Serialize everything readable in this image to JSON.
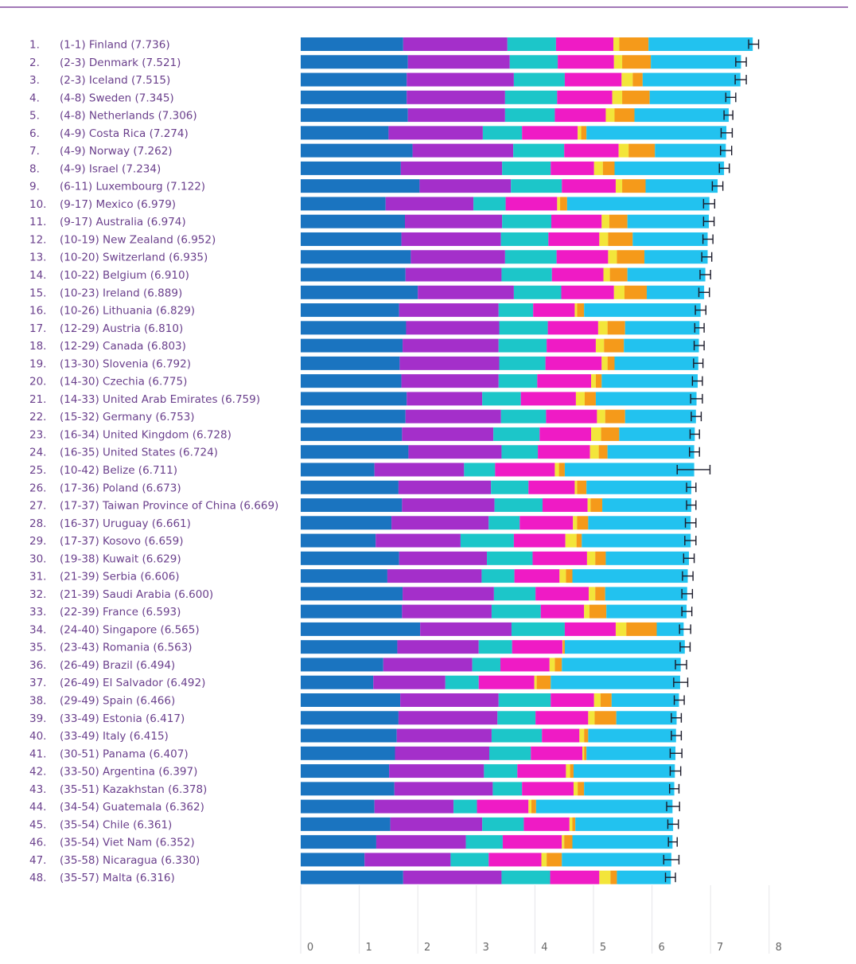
{
  "chart_data": {
    "type": "bar",
    "stacked": true,
    "orientation": "horizontal",
    "title": "",
    "xlabel": "",
    "ylabel": "",
    "xlim": [
      0,
      8
    ],
    "x_ticks": [
      "0",
      "1",
      "2",
      "3",
      "4",
      "5",
      "6",
      "7",
      "8"
    ],
    "grid": true,
    "legend": "none",
    "segment_colors": [
      "#1a74c0",
      "#a42fca",
      "#1cc6c9",
      "#ef1bc5",
      "#f3e53a",
      "#f59a1a",
      "#22c2ef"
    ],
    "rows": [
      {
        "label": "1.",
        "text": "(1-1) Finland (7.736)",
        "segments": [
          1.75,
          1.78,
          0.83,
          0.98,
          0.1,
          0.5,
          1.78
        ],
        "ci": [
          7.65,
          7.82
        ]
      },
      {
        "label": "2.",
        "text": "(2-3) Denmark (7.521)",
        "segments": [
          1.83,
          1.74,
          0.82,
          0.96,
          0.14,
          0.49,
          1.54
        ],
        "ci": [
          7.43,
          7.61
        ]
      },
      {
        "label": "3.",
        "text": "(2-3) Iceland (7.515)",
        "segments": [
          1.81,
          1.83,
          0.87,
          0.97,
          0.19,
          0.17,
          1.67
        ],
        "ci": [
          7.42,
          7.61
        ]
      },
      {
        "label": "4.",
        "text": "(4-8) Sweden (7.345)",
        "segments": [
          1.81,
          1.68,
          0.89,
          0.94,
          0.17,
          0.47,
          1.38
        ],
        "ci": [
          7.26,
          7.43
        ]
      },
      {
        "label": "5.",
        "text": "(4-8) Netherlands (7.306)",
        "segments": [
          1.83,
          1.66,
          0.85,
          0.87,
          0.15,
          0.34,
          1.61
        ],
        "ci": [
          7.23,
          7.38
        ]
      },
      {
        "label": "6.",
        "text": "(4-9) Costa Rica (7.274)",
        "segments": [
          1.5,
          1.61,
          0.67,
          0.95,
          0.06,
          0.09,
          2.39
        ],
        "ci": [
          7.18,
          7.37
        ]
      },
      {
        "label": "7.",
        "text": "(4-9) Norway (7.262)",
        "segments": [
          1.91,
          1.72,
          0.87,
          0.93,
          0.17,
          0.45,
          1.21
        ],
        "ci": [
          7.17,
          7.36
        ]
      },
      {
        "label": "8.",
        "text": "(4-9) Israel (7.234)",
        "segments": [
          1.71,
          1.73,
          0.83,
          0.74,
          0.15,
          0.2,
          1.87
        ],
        "ci": [
          7.15,
          7.32
        ]
      },
      {
        "label": "9.",
        "text": "(6-11) Luxembourg (7.122)",
        "segments": [
          2.03,
          1.56,
          0.87,
          0.92,
          0.11,
          0.4,
          1.23
        ],
        "ci": [
          7.03,
          7.21
        ]
      },
      {
        "label": "10.",
        "text": "(9-17) Mexico (6.979)",
        "segments": [
          1.45,
          1.5,
          0.55,
          0.88,
          0.05,
          0.12,
          2.43
        ],
        "ci": [
          6.88,
          7.07
        ]
      },
      {
        "label": "11.",
        "text": "(9-17) Australia (6.974)",
        "segments": [
          1.78,
          1.66,
          0.84,
          0.86,
          0.13,
          0.31,
          1.39
        ],
        "ci": [
          6.88,
          7.06
        ]
      },
      {
        "label": "12.",
        "text": "(10-19) New Zealand (6.952)",
        "segments": [
          1.72,
          1.7,
          0.81,
          0.87,
          0.15,
          0.42,
          1.28
        ],
        "ci": [
          6.87,
          7.04
        ]
      },
      {
        "label": "13.",
        "text": "(10-20) Switzerland (6.935)",
        "segments": [
          1.88,
          1.61,
          0.88,
          0.88,
          0.15,
          0.47,
          1.08
        ],
        "ci": [
          6.85,
          7.02
        ]
      },
      {
        "label": "14.",
        "text": "(10-22) Belgium (6.910)",
        "segments": [
          1.79,
          1.64,
          0.86,
          0.88,
          0.11,
          0.3,
          1.33
        ],
        "ci": [
          6.82,
          7.0
        ]
      },
      {
        "label": "15.",
        "text": "(10-23) Ireland (6.889)",
        "segments": [
          2.0,
          1.64,
          0.81,
          0.9,
          0.18,
          0.38,
          0.98
        ],
        "ci": [
          6.8,
          6.98
        ]
      },
      {
        "label": "16.",
        "text": "(10-26) Lithuania (6.829)",
        "segments": [
          1.68,
          1.7,
          0.59,
          0.71,
          0.04,
          0.12,
          1.99
        ],
        "ci": [
          6.74,
          6.92
        ]
      },
      {
        "label": "17.",
        "text": "(12-29) Austria (6.810)",
        "segments": [
          1.8,
          1.59,
          0.83,
          0.86,
          0.16,
          0.3,
          1.27
        ],
        "ci": [
          6.73,
          6.89
        ]
      },
      {
        "label": "18.",
        "text": "(12-29) Canada (6.803)",
        "segments": [
          1.74,
          1.64,
          0.82,
          0.84,
          0.14,
          0.34,
          1.28
        ],
        "ci": [
          6.72,
          6.89
        ]
      },
      {
        "label": "19.",
        "text": "(13-30) Slovenia (6.792)",
        "segments": [
          1.69,
          1.7,
          0.79,
          0.96,
          0.1,
          0.12,
          1.43
        ],
        "ci": [
          6.71,
          6.87
        ]
      },
      {
        "label": "20.",
        "text": "(14-30) Czechia (6.775)",
        "segments": [
          1.72,
          1.66,
          0.66,
          0.92,
          0.08,
          0.1,
          1.64
        ],
        "ci": [
          6.69,
          6.86
        ]
      },
      {
        "label": "21.",
        "text": "(14-33) United Arab Emirates (6.759)",
        "segments": [
          1.81,
          1.29,
          0.66,
          0.94,
          0.15,
          0.19,
          1.72
        ],
        "ci": [
          6.66,
          6.86
        ]
      },
      {
        "label": "22.",
        "text": "(15-32) Germany (6.753)",
        "segments": [
          1.79,
          1.63,
          0.77,
          0.87,
          0.14,
          0.34,
          1.21
        ],
        "ci": [
          6.67,
          6.84
        ]
      },
      {
        "label": "23.",
        "text": "(16-34) United Kingdom (6.728)",
        "segments": [
          1.73,
          1.56,
          0.79,
          0.88,
          0.17,
          0.31,
          1.29
        ],
        "ci": [
          6.65,
          6.81
        ]
      },
      {
        "label": "24.",
        "text": "(16-35) United States (6.724)",
        "segments": [
          1.84,
          1.59,
          0.62,
          0.89,
          0.15,
          0.15,
          1.48
        ],
        "ci": [
          6.64,
          6.81
        ]
      },
      {
        "label": "25.",
        "text": "(10-42) Belize (6.711)",
        "segments": [
          1.26,
          1.53,
          0.53,
          1.02,
          0.07,
          0.1,
          2.21
        ],
        "ci": [
          6.43,
          6.99
        ]
      },
      {
        "label": "26.",
        "text": "(17-36) Poland (6.673)",
        "segments": [
          1.67,
          1.58,
          0.64,
          0.79,
          0.04,
          0.16,
          1.79
        ],
        "ci": [
          6.59,
          6.75
        ]
      },
      {
        "label": "27.",
        "text": "(17-37) Taiwan Province of China (6.669)",
        "segments": [
          1.73,
          1.58,
          0.82,
          0.77,
          0.05,
          0.2,
          1.52
        ],
        "ci": [
          6.59,
          6.75
        ]
      },
      {
        "label": "28.",
        "text": "(16-37) Uruguay (6.661)",
        "segments": [
          1.55,
          1.66,
          0.53,
          0.91,
          0.07,
          0.19,
          1.75
        ],
        "ci": [
          6.57,
          6.75
        ]
      },
      {
        "label": "29.",
        "text": "(17-37) Kosovo (6.659)",
        "segments": [
          1.28,
          1.45,
          0.91,
          0.88,
          0.19,
          0.09,
          1.86
        ],
        "ci": [
          6.56,
          6.75
        ]
      },
      {
        "label": "30.",
        "text": "(19-38) Kuwait (6.629)",
        "segments": [
          1.68,
          1.5,
          0.78,
          0.93,
          0.14,
          0.18,
          1.42
        ],
        "ci": [
          6.54,
          6.72
        ]
      },
      {
        "label": "31.",
        "text": "(21-39) Serbia (6.606)",
        "segments": [
          1.48,
          1.61,
          0.56,
          0.77,
          0.11,
          0.11,
          1.97
        ],
        "ci": [
          6.52,
          6.7
        ]
      },
      {
        "label": "32.",
        "text": "(21-39) Saudi Arabia (6.600)",
        "segments": [
          1.74,
          1.56,
          0.71,
          0.91,
          0.11,
          0.17,
          1.4
        ],
        "ci": [
          6.51,
          6.69
        ]
      },
      {
        "label": "33.",
        "text": "(22-39) France (6.593)",
        "segments": [
          1.73,
          1.53,
          0.84,
          0.74,
          0.09,
          0.29,
          1.37
        ],
        "ci": [
          6.51,
          6.68
        ]
      },
      {
        "label": "34.",
        "text": "(24-40) Singapore (6.565)",
        "segments": [
          2.04,
          1.56,
          0.91,
          0.87,
          0.18,
          0.52,
          0.46
        ],
        "ci": [
          6.47,
          6.66
        ]
      },
      {
        "label": "35.",
        "text": "(23-43) Romania (6.563)",
        "segments": [
          1.65,
          1.39,
          0.57,
          0.86,
          0.01,
          0.03,
          2.05
        ],
        "ci": [
          6.48,
          6.65
        ]
      },
      {
        "label": "36.",
        "text": "(26-49) Brazil (6.494)",
        "segments": [
          1.41,
          1.52,
          0.48,
          0.84,
          0.09,
          0.12,
          2.03
        ],
        "ci": [
          6.4,
          6.59
        ]
      },
      {
        "label": "37.",
        "text": "(26-49) El Salvador (6.492)",
        "segments": [
          1.24,
          1.23,
          0.57,
          0.95,
          0.04,
          0.24,
          2.21
        ],
        "ci": [
          6.37,
          6.61
        ]
      },
      {
        "label": "38.",
        "text": "(29-49) Spain (6.466)",
        "segments": [
          1.7,
          1.68,
          0.89,
          0.74,
          0.11,
          0.19,
          1.15
        ],
        "ci": [
          6.38,
          6.55
        ]
      },
      {
        "label": "39.",
        "text": "(33-49) Estonia (6.417)",
        "segments": [
          1.67,
          1.69,
          0.65,
          0.9,
          0.11,
          0.37,
          1.03
        ],
        "ci": [
          6.33,
          6.5
        ]
      },
      {
        "label": "40.",
        "text": "(33-49) Italy (6.415)",
        "segments": [
          1.64,
          1.62,
          0.86,
          0.64,
          0.08,
          0.07,
          1.5
        ],
        "ci": [
          6.33,
          6.5
        ]
      },
      {
        "label": "41.",
        "text": "(30-51) Panama (6.407)",
        "segments": [
          1.61,
          1.61,
          0.71,
          0.88,
          0.03,
          0.04,
          1.52
        ],
        "ci": [
          6.31,
          6.51
        ]
      },
      {
        "label": "42.",
        "text": "(33-50) Argentina (6.397)",
        "segments": [
          1.51,
          1.62,
          0.57,
          0.83,
          0.07,
          0.06,
          1.73
        ],
        "ci": [
          6.31,
          6.49
        ]
      },
      {
        "label": "43.",
        "text": "(35-51) Kazakhstan (6.378)",
        "segments": [
          1.6,
          1.68,
          0.5,
          0.88,
          0.07,
          0.11,
          1.54
        ],
        "ci": [
          6.3,
          6.46
        ]
      },
      {
        "label": "44.",
        "text": "(34-54) Guatemala (6.362)",
        "segments": [
          1.26,
          1.35,
          0.4,
          0.88,
          0.05,
          0.08,
          2.33
        ],
        "ci": [
          6.25,
          6.47
        ]
      },
      {
        "label": "45.",
        "text": "(35-54) Chile (6.361)",
        "segments": [
          1.53,
          1.57,
          0.71,
          0.78,
          0.05,
          0.05,
          1.67
        ],
        "ci": [
          6.27,
          6.45
        ]
      },
      {
        "label": "46.",
        "text": "(35-54) Viet Nam (6.352)",
        "segments": [
          1.29,
          1.53,
          0.63,
          1.01,
          0.04,
          0.14,
          1.71
        ],
        "ci": [
          6.28,
          6.43
        ]
      },
      {
        "label": "47.",
        "text": "(35-58) Nicaragua (6.330)",
        "segments": [
          1.09,
          1.47,
          0.65,
          0.9,
          0.09,
          0.26,
          1.87
        ],
        "ci": [
          6.2,
          6.46
        ]
      },
      {
        "label": "48.",
        "text": "(35-57) Malta (6.316)",
        "segments": [
          1.75,
          1.68,
          0.83,
          0.84,
          0.19,
          0.11,
          0.92
        ],
        "ci": [
          6.23,
          6.4
        ]
      }
    ]
  }
}
